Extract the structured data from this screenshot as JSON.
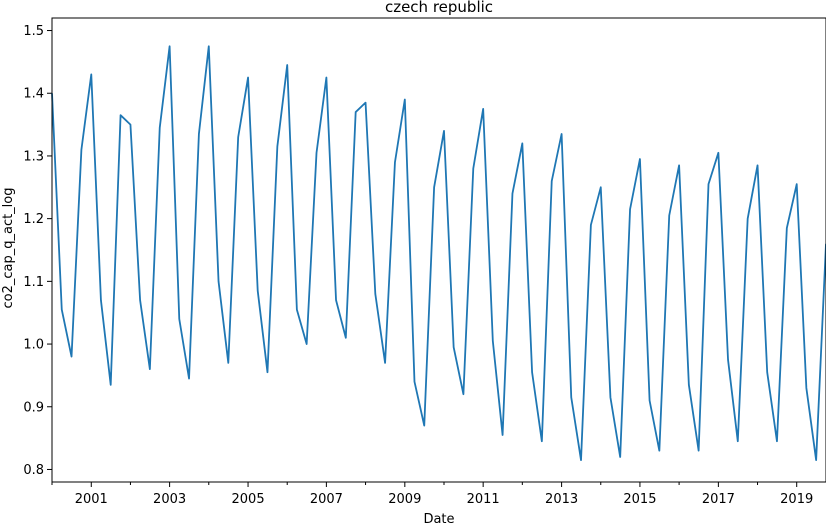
{
  "chart_data": {
    "type": "line",
    "title": "czech republic",
    "xlabel": "Date",
    "ylabel": "co2_cap_q_act_log",
    "xlim": [
      "2000-01-01",
      "2019-10-01"
    ],
    "ylim": [
      0.78,
      1.52
    ],
    "x_ticks": [
      "2001",
      "2003",
      "2005",
      "2007",
      "2009",
      "2011",
      "2013",
      "2015",
      "2017",
      "2019"
    ],
    "y_ticks": [
      0.8,
      0.9,
      1.0,
      1.1,
      1.2,
      1.3,
      1.4,
      1.5
    ],
    "grid": false,
    "legend": "none",
    "line_color": "#1f77b4",
    "series": [
      {
        "x": [
          "2000-01-01",
          "2000-04-01",
          "2000-07-01",
          "2000-10-01",
          "2001-01-01",
          "2001-04-01",
          "2001-07-01",
          "2001-10-01",
          "2002-01-01",
          "2002-04-01",
          "2002-07-01",
          "2002-10-01",
          "2003-01-01",
          "2003-04-01",
          "2003-07-01",
          "2003-10-01",
          "2004-01-01",
          "2004-04-01",
          "2004-07-01",
          "2004-10-01",
          "2005-01-01",
          "2005-04-01",
          "2005-07-01",
          "2005-10-01",
          "2006-01-01",
          "2006-04-01",
          "2006-07-01",
          "2006-10-01",
          "2007-01-01",
          "2007-04-01",
          "2007-07-01",
          "2007-10-01",
          "2008-01-01",
          "2008-04-01",
          "2008-07-01",
          "2008-10-01",
          "2009-01-01",
          "2009-04-01",
          "2009-07-01",
          "2009-10-01",
          "2010-01-01",
          "2010-04-01",
          "2010-07-01",
          "2010-10-01",
          "2011-01-01",
          "2011-04-01",
          "2011-07-01",
          "2011-10-01",
          "2012-01-01",
          "2012-04-01",
          "2012-07-01",
          "2012-10-01",
          "2013-01-01",
          "2013-04-01",
          "2013-07-01",
          "2013-10-01",
          "2014-01-01",
          "2014-04-01",
          "2014-07-01",
          "2014-10-01",
          "2015-01-01",
          "2015-04-01",
          "2015-07-01",
          "2015-10-01",
          "2016-01-01",
          "2016-04-01",
          "2016-07-01",
          "2016-10-01",
          "2017-01-01",
          "2017-04-01",
          "2017-07-01",
          "2017-10-01",
          "2018-01-01",
          "2018-04-01",
          "2018-07-01",
          "2018-10-01",
          "2019-01-01",
          "2019-04-01",
          "2019-07-01",
          "2019-10-01"
        ],
        "y": [
          1.4,
          1.055,
          0.98,
          1.31,
          1.43,
          1.07,
          0.935,
          1.365,
          1.35,
          1.07,
          0.96,
          1.345,
          1.475,
          1.04,
          0.945,
          1.335,
          1.475,
          1.1,
          0.97,
          1.33,
          1.425,
          1.085,
          0.955,
          1.315,
          1.445,
          1.055,
          1.0,
          1.305,
          1.425,
          1.07,
          1.01,
          1.37,
          1.385,
          1.08,
          0.97,
          1.29,
          1.39,
          0.94,
          0.87,
          1.25,
          1.34,
          0.995,
          0.92,
          1.28,
          1.375,
          1.005,
          0.855,
          1.24,
          1.32,
          0.955,
          0.845,
          1.26,
          1.335,
          0.915,
          0.815,
          1.19,
          1.25,
          0.915,
          0.82,
          1.215,
          1.295,
          0.91,
          0.83,
          1.205,
          1.285,
          0.935,
          0.83,
          1.255,
          1.305,
          0.975,
          0.845,
          1.2,
          1.285,
          0.955,
          0.845,
          1.185,
          1.255,
          0.93,
          0.815,
          1.16
        ]
      }
    ]
  }
}
